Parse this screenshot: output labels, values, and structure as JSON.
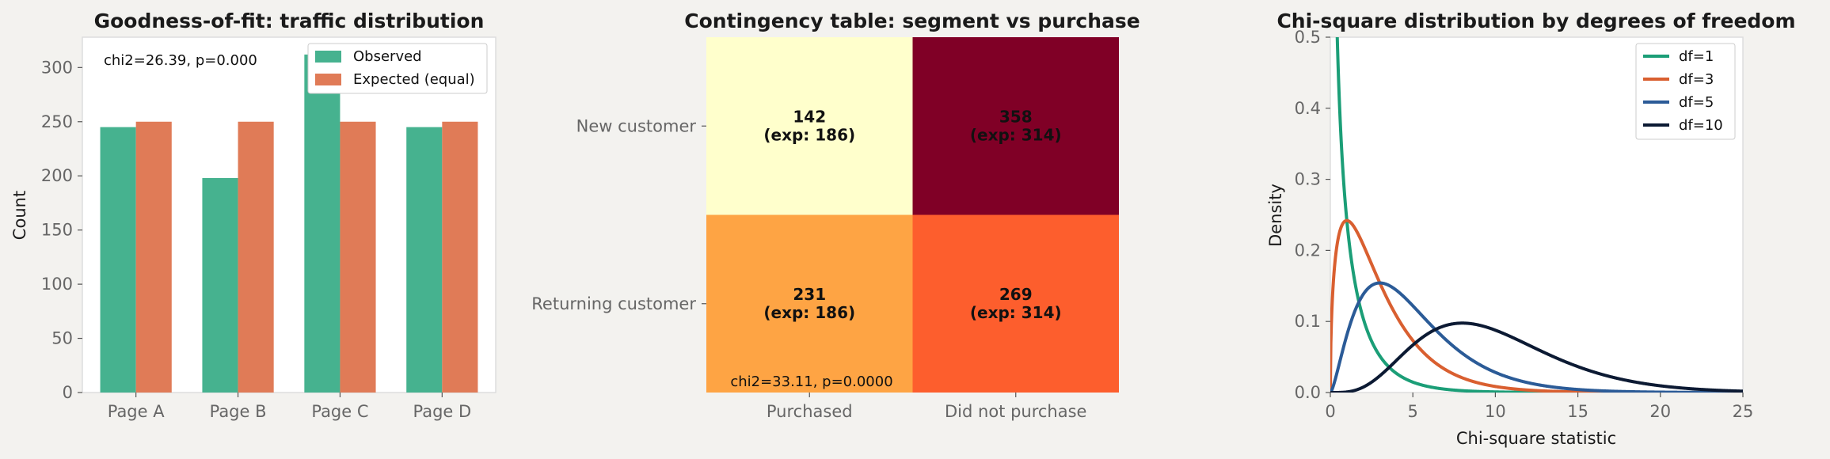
{
  "chart_data": [
    {
      "type": "bar",
      "title": "Goodness-of-fit: traffic distribution",
      "xlabel": "",
      "ylabel": "Count",
      "categories": [
        "Page A",
        "Page B",
        "Page C",
        "Page D"
      ],
      "series": [
        {
          "name": "Observed",
          "values": [
            245,
            198,
            312,
            245
          ],
          "color": "#46b28f"
        },
        {
          "name": "Expected (equal)",
          "values": [
            250,
            250,
            250,
            250
          ],
          "color": "#e07b57"
        }
      ],
      "ylim": [
        0,
        328
      ],
      "yticks": [
        0,
        50,
        100,
        150,
        200,
        250,
        300
      ],
      "annotation": "chi2=26.39, p=0.000",
      "legend": "top-right",
      "grid": false
    },
    {
      "type": "heatmap",
      "title": "Contingency table: segment vs purchase",
      "rows": [
        "New customer",
        "Returning customer"
      ],
      "columns": [
        "Purchased",
        "Did not purchase"
      ],
      "values": [
        [
          142,
          358
        ],
        [
          231,
          269
        ]
      ],
      "expected": [
        [
          186,
          314
        ],
        [
          186,
          314
        ]
      ],
      "cell_labels": [
        [
          "142",
          "(exp: 186)",
          "358",
          "(exp: 314)"
        ],
        [
          "231",
          "(exp: 186)",
          "269",
          "(exp: 314)"
        ]
      ],
      "cell_colors": [
        [
          "#ffffcc",
          "#800026"
        ],
        [
          "#fea444",
          "#fd5e2d"
        ]
      ],
      "colormap": "YlOrRd",
      "annotation": "chi2=33.11, p=0.0000"
    },
    {
      "type": "line",
      "title": "Chi-square distribution by degrees of freedom",
      "xlabel": "Chi-square statistic",
      "ylabel": "Density",
      "xlim": [
        0,
        25
      ],
      "ylim": [
        0,
        0.5
      ],
      "xticks": [
        0,
        5,
        10,
        15,
        20,
        25
      ],
      "yticks": [
        0.0,
        0.1,
        0.2,
        0.3,
        0.4,
        0.5
      ],
      "series": [
        {
          "name": "df=1",
          "df": 1,
          "color": "#1b9e77"
        },
        {
          "name": "df=3",
          "df": 3,
          "color": "#d95f30"
        },
        {
          "name": "df=5",
          "df": 5,
          "color": "#2b5b97"
        },
        {
          "name": "df=10",
          "df": 10,
          "color": "#0c1a33"
        }
      ],
      "legend": "top-right",
      "grid": false
    }
  ]
}
